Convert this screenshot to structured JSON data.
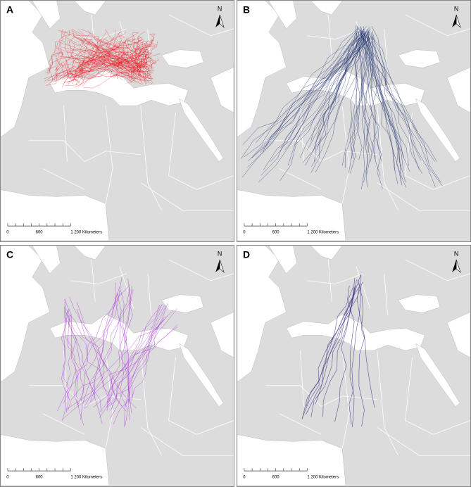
{
  "panels": [
    {
      "label": "A",
      "north": "N",
      "scale_labels": [
        "0",
        "600",
        "1 200 Kilometers"
      ],
      "color": "#e8151b"
    },
    {
      "label": "B",
      "north": "N",
      "scale_labels": [
        "0",
        "600",
        "1 200 Kilometers"
      ],
      "color": "#1d2f6e"
    },
    {
      "label": "C",
      "north": "N",
      "scale_labels": [
        "0",
        "600",
        "1 200 Kilometers"
      ],
      "color": "#a626d6"
    },
    {
      "label": "D",
      "north": "N",
      "scale_labels": [
        "0",
        "600",
        "1 200 Kilometers"
      ],
      "color": "#3b2b86"
    }
  ]
}
